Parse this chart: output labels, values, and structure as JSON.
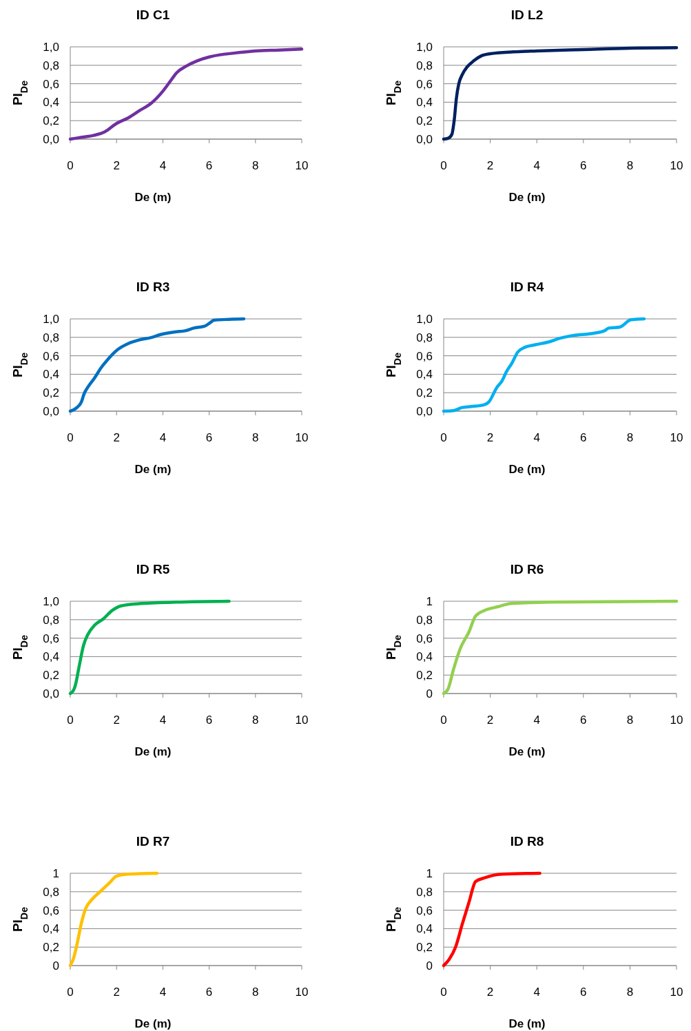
{
  "chart_data": [
    {
      "type": "line",
      "title": "ID C1",
      "xlabel": "De (m)",
      "ylabel": "PI$_{De}$",
      "xlim": [
        0,
        10
      ],
      "xticks": [
        0,
        2,
        4,
        6,
        8,
        10
      ],
      "ylim": [
        0,
        1
      ],
      "yticks": [
        {
          "value": 0,
          "label": "0,0"
        },
        {
          "value": 0.2,
          "label": "0,2"
        },
        {
          "value": 0.4,
          "label": "0,4"
        },
        {
          "value": 0.6,
          "label": "0,6"
        },
        {
          "value": 0.8,
          "label": "0,8"
        },
        {
          "value": 1,
          "label": "1,0"
        }
      ],
      "grid": "y",
      "x": [
        0,
        0.5,
        1,
        1.5,
        2,
        2.5,
        3,
        3.5,
        4,
        4.3,
        4.6,
        5,
        5.5,
        6,
        6.5,
        7,
        8,
        9,
        10
      ],
      "series": [
        {
          "color": "#7030a0",
          "values": [
            0,
            0.02,
            0.04,
            0.08,
            0.17,
            0.23,
            0.31,
            0.39,
            0.52,
            0.62,
            0.72,
            0.79,
            0.85,
            0.89,
            0.915,
            0.93,
            0.955,
            0.965,
            0.975
          ]
        }
      ]
    },
    {
      "type": "line",
      "title": "ID L2",
      "xlabel": "De (m)",
      "ylabel": "PI$_{De}$",
      "xlim": [
        0,
        10
      ],
      "xticks": [
        0,
        2,
        4,
        6,
        8,
        10
      ],
      "ylim": [
        0,
        1
      ],
      "yticks": [
        {
          "value": 0,
          "label": "0,0"
        },
        {
          "value": 0.2,
          "label": "0,2"
        },
        {
          "value": 0.4,
          "label": "0,4"
        },
        {
          "value": 0.6,
          "label": "0,6"
        },
        {
          "value": 0.8,
          "label": "0,8"
        },
        {
          "value": 1,
          "label": "1,0"
        }
      ],
      "grid": "y",
      "x": [
        0,
        0.2,
        0.35,
        0.45,
        0.55,
        0.65,
        0.8,
        1,
        1.3,
        1.6,
        2,
        3,
        4,
        6,
        8,
        10
      ],
      "series": [
        {
          "color": "#002060",
          "values": [
            0,
            0.01,
            0.05,
            0.2,
            0.45,
            0.6,
            0.7,
            0.78,
            0.85,
            0.9,
            0.925,
            0.945,
            0.955,
            0.97,
            0.985,
            0.99
          ]
        }
      ]
    },
    {
      "type": "line",
      "title": "ID R3",
      "xlabel": "De (m)",
      "ylabel": "PI$_{De}$",
      "xlim": [
        0,
        10
      ],
      "xticks": [
        0,
        2,
        4,
        6,
        8,
        10
      ],
      "ylim": [
        0,
        1
      ],
      "yticks": [
        {
          "value": 0,
          "label": "0,0"
        },
        {
          "value": 0.2,
          "label": "0,2"
        },
        {
          "value": 0.4,
          "label": "0,4"
        },
        {
          "value": 0.6,
          "label": "0,6"
        },
        {
          "value": 0.8,
          "label": "0,8"
        },
        {
          "value": 1,
          "label": "1,0"
        }
      ],
      "grid": "y",
      "x": [
        0,
        0.29,
        0.48,
        0.6,
        0.76,
        1.05,
        1.33,
        1.62,
        2.06,
        2.48,
        2.95,
        3.52,
        3.9,
        4.57,
        4.95,
        5.33,
        5.8,
        6.05,
        6.2,
        6.86,
        7.5
      ],
      "series": [
        {
          "color": "#0070c0",
          "values": [
            0,
            0.04,
            0.1,
            0.19,
            0.26,
            0.36,
            0.47,
            0.56,
            0.67,
            0.73,
            0.77,
            0.8,
            0.83,
            0.86,
            0.87,
            0.9,
            0.92,
            0.96,
            0.985,
            0.995,
            1
          ]
        }
      ]
    },
    {
      "type": "line",
      "title": "ID R4",
      "xlabel": "De (m)",
      "ylabel": "PI$_{De}$",
      "xlim": [
        0,
        10
      ],
      "xticks": [
        0,
        2,
        4,
        6,
        8,
        10
      ],
      "ylim": [
        0,
        1
      ],
      "yticks": [
        {
          "value": 0,
          "label": "0,0"
        },
        {
          "value": 0.2,
          "label": "0,2"
        },
        {
          "value": 0.4,
          "label": "0,4"
        },
        {
          "value": 0.6,
          "label": "0,6"
        },
        {
          "value": 0.8,
          "label": "0,8"
        },
        {
          "value": 1,
          "label": "1,0"
        }
      ],
      "grid": "y",
      "x": [
        0,
        0.42,
        0.8,
        1.18,
        1.75,
        1.94,
        2.29,
        2.51,
        2.7,
        2.93,
        3.18,
        3.47,
        3.94,
        4.51,
        4.99,
        5.56,
        6.32,
        6.9,
        7.09,
        7.56,
        8.04,
        8.61
      ],
      "series": [
        {
          "color": "#00b0f0",
          "values": [
            0,
            0.005,
            0.04,
            0.05,
            0.07,
            0.1,
            0.26,
            0.33,
            0.43,
            0.52,
            0.64,
            0.69,
            0.72,
            0.75,
            0.79,
            0.82,
            0.84,
            0.87,
            0.9,
            0.91,
            0.99,
            1
          ]
        }
      ]
    },
    {
      "type": "line",
      "title": "ID R5",
      "xlabel": "De (m)",
      "ylabel": "PI$_{De}$",
      "xlim": [
        0,
        10
      ],
      "xticks": [
        0,
        2,
        4,
        6,
        8,
        10
      ],
      "ylim": [
        0,
        1
      ],
      "yticks": [
        {
          "value": 0,
          "label": "0,0"
        },
        {
          "value": 0.2,
          "label": "0,2"
        },
        {
          "value": 0.4,
          "label": "0,4"
        },
        {
          "value": 0.6,
          "label": "0,6"
        },
        {
          "value": 0.8,
          "label": "0,8"
        },
        {
          "value": 1,
          "label": "1,0"
        }
      ],
      "grid": "y",
      "x": [
        0,
        0.15,
        0.23,
        0.38,
        0.57,
        0.76,
        1.05,
        1.43,
        1.81,
        2.19,
        3.05,
        4.57,
        6.86
      ],
      "series": [
        {
          "color": "#00b050",
          "values": [
            0,
            0.04,
            0.1,
            0.29,
            0.52,
            0.64,
            0.74,
            0.81,
            0.9,
            0.95,
            0.975,
            0.99,
            1
          ]
        }
      ]
    },
    {
      "type": "line",
      "title": "ID R6",
      "xlabel": "De (m)",
      "ylabel": "PI$_{De}$",
      "xlim": [
        0,
        10
      ],
      "xticks": [
        0,
        2,
        4,
        6,
        8,
        10
      ],
      "ylim": [
        0,
        1
      ],
      "yticks": [
        {
          "value": 0,
          "label": "0"
        },
        {
          "value": 0.2,
          "label": "0,2"
        },
        {
          "value": 0.4,
          "label": "0,4"
        },
        {
          "value": 0.6,
          "label": "0,6"
        },
        {
          "value": 0.8,
          "label": "0,8"
        },
        {
          "value": 1,
          "label": "1"
        }
      ],
      "grid": "y",
      "x": [
        0,
        0.19,
        0.42,
        0.7,
        1.09,
        1.37,
        1.75,
        2.32,
        2.9,
        4.61,
        10
      ],
      "series": [
        {
          "color": "#92d050",
          "values": [
            0,
            0.05,
            0.26,
            0.48,
            0.67,
            0.84,
            0.9,
            0.94,
            0.975,
            0.99,
            1
          ]
        }
      ]
    },
    {
      "type": "line",
      "title": "ID R7",
      "xlabel": "De (m)",
      "ylabel": "PI$_{De}$",
      "xlim": [
        0,
        10
      ],
      "xticks": [
        0,
        2,
        4,
        6,
        8,
        10
      ],
      "ylim": [
        0,
        1
      ],
      "yticks": [
        {
          "value": 0,
          "label": "0"
        },
        {
          "value": 0.2,
          "label": "0,2"
        },
        {
          "value": 0.4,
          "label": "0,4"
        },
        {
          "value": 0.6,
          "label": "0,6"
        },
        {
          "value": 0.8,
          "label": "0,8"
        },
        {
          "value": 1,
          "label": "1"
        }
      ],
      "grid": "y",
      "x": [
        0,
        0.15,
        0.29,
        0.48,
        0.67,
        0.95,
        1.33,
        1.71,
        2,
        2.48,
        3.75
      ],
      "series": [
        {
          "color": "#ffc000",
          "values": [
            0,
            0.085,
            0.23,
            0.46,
            0.62,
            0.72,
            0.81,
            0.9,
            0.97,
            0.99,
            1
          ]
        }
      ]
    },
    {
      "type": "line",
      "title": "ID R8",
      "xlabel": "De (m)",
      "ylabel": "PI$_{De}$",
      "xlim": [
        0,
        10
      ],
      "xticks": [
        0,
        2,
        4,
        6,
        8,
        10
      ],
      "ylim": [
        0,
        1
      ],
      "yticks": [
        {
          "value": 0,
          "label": "0"
        },
        {
          "value": 0.2,
          "label": "0,2"
        },
        {
          "value": 0.4,
          "label": "0,4"
        },
        {
          "value": 0.6,
          "label": "0,6"
        },
        {
          "value": 0.8,
          "label": "0,8"
        },
        {
          "value": 1,
          "label": "1"
        }
      ],
      "grid": "y",
      "x": [
        0,
        0.23,
        0.51,
        0.8,
        1.09,
        1.37,
        1.75,
        2.51,
        4.13
      ],
      "series": [
        {
          "color": "#ff0000",
          "values": [
            0,
            0.065,
            0.2,
            0.45,
            0.69,
            0.91,
            0.95,
            0.99,
            1
          ]
        }
      ]
    }
  ]
}
